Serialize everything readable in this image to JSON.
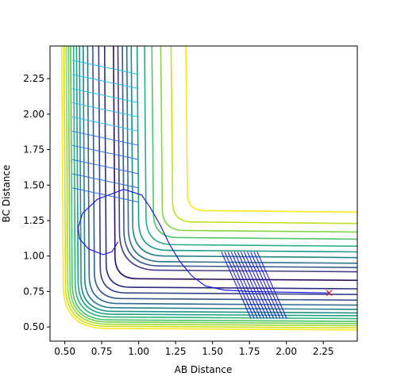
{
  "chart_data": {
    "type": "contour",
    "xlabel": "AB Distance",
    "ylabel": "BC Distance",
    "xlim": [
      0.4,
      2.48
    ],
    "ylim": [
      0.4,
      2.48
    ],
    "xticks": [
      "0.50",
      "0.75",
      "1.00",
      "1.25",
      "1.50",
      "1.75",
      "2.00",
      "2.25"
    ],
    "yticks": [
      "0.50",
      "0.75",
      "1.00",
      "1.25",
      "1.50",
      "1.75",
      "2.00",
      "2.25"
    ],
    "grid": false,
    "contour_levels": [
      {
        "ab": 0.84,
        "bc": 0.84,
        "color": "#2c0f5e"
      },
      {
        "ab": 0.78,
        "bc": 0.78,
        "color": "#2e2c7a"
      },
      {
        "ab": 0.74,
        "bc": 0.74,
        "color": "#35418a"
      },
      {
        "ab": 0.7,
        "bc": 0.7,
        "color": "#39568c"
      },
      {
        "ab": 0.665,
        "bc": 0.665,
        "color": "#2e6b8e"
      },
      {
        "ab": 0.635,
        "bc": 0.635,
        "color": "#277f8e"
      },
      {
        "ab": 0.61,
        "bc": 0.61,
        "color": "#21918c"
      },
      {
        "ab": 0.59,
        "bc": 0.59,
        "color": "#1fa187"
      },
      {
        "ab": 0.57,
        "bc": 0.57,
        "color": "#2db27d"
      },
      {
        "ab": 0.55,
        "bc": 0.55,
        "color": "#4ac16d"
      },
      {
        "ab": 0.535,
        "bc": 0.535,
        "color": "#73d056"
      },
      {
        "ab": 0.52,
        "bc": 0.52,
        "color": "#a0da39"
      },
      {
        "ab": 0.505,
        "bc": 0.505,
        "color": "#d0e11c"
      },
      {
        "ab": 0.49,
        "bc": 0.49,
        "color": "#fde725"
      }
    ],
    "outer_contours": [
      {
        "ab": 1.33,
        "bc": 1.32,
        "color": "#fde725"
      },
      {
        "ab": 1.23,
        "bc": 1.24,
        "color": "#c2df23"
      },
      {
        "ab": 1.16,
        "bc": 1.18,
        "color": "#86d549"
      },
      {
        "ab": 1.1,
        "bc": 1.13,
        "color": "#52c569"
      },
      {
        "ab": 1.05,
        "bc": 1.08,
        "color": "#2ab07f"
      },
      {
        "ab": 1.0,
        "bc": 1.04,
        "color": "#1e9b8a"
      },
      {
        "ab": 0.96,
        "bc": 1.0,
        "color": "#25848e"
      },
      {
        "ab": 0.93,
        "bc": 0.96,
        "color": "#2d708e"
      },
      {
        "ab": 0.9,
        "bc": 0.93,
        "color": "#38588c"
      },
      {
        "ab": 0.87,
        "bc": 0.9,
        "color": "#433e85"
      }
    ],
    "trajectory": [
      [
        2.29,
        0.74
      ],
      [
        2.0,
        0.745
      ],
      [
        1.75,
        0.75
      ],
      [
        1.58,
        0.76
      ],
      [
        1.45,
        0.79
      ],
      [
        1.36,
        0.86
      ],
      [
        1.28,
        0.96
      ],
      [
        1.21,
        1.08
      ],
      [
        1.15,
        1.21
      ],
      [
        1.08,
        1.34
      ],
      [
        1.02,
        1.43
      ],
      [
        0.9,
        1.47
      ],
      [
        0.72,
        1.4
      ],
      [
        0.62,
        1.3
      ],
      [
        0.59,
        1.2
      ],
      [
        0.6,
        1.12
      ],
      [
        0.66,
        1.05
      ],
      [
        0.76,
        1.01
      ],
      [
        0.82,
        1.03
      ],
      [
        0.86,
        1.1
      ]
    ],
    "marker": {
      "x": 2.29,
      "y": 0.74,
      "symbol": "x",
      "color": "#dd2222"
    }
  }
}
